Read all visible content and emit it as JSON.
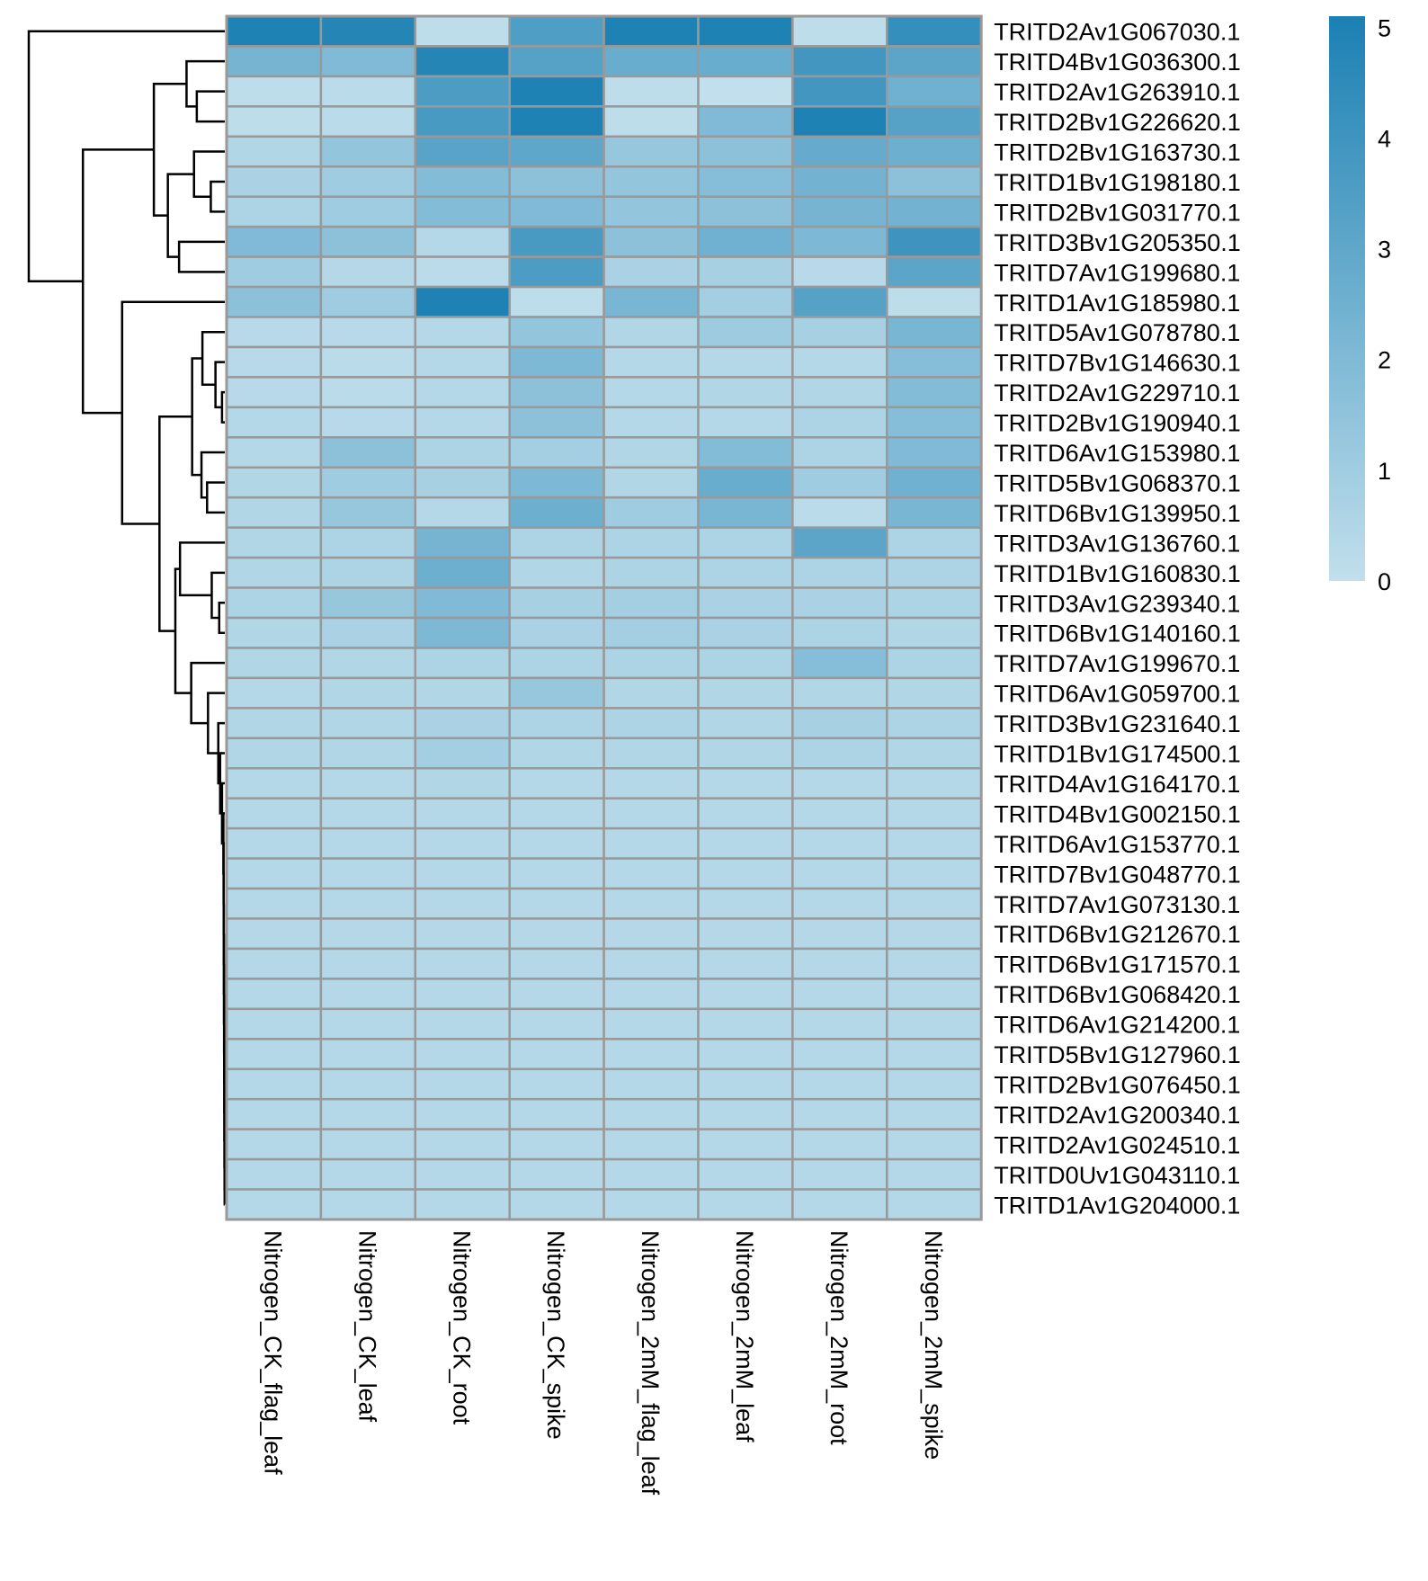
{
  "chart_data": {
    "type": "heatmap",
    "columns": [
      "Nitrogen_CK_flag_leaf",
      "Nitrogen_CK_leaf",
      "Nitrogen_CK_root",
      "Nitrogen_CK_spike",
      "Nitrogen_2mM_flag_leaf",
      "Nitrogen_2mM_leaf",
      "Nitrogen_2mM_root",
      "Nitrogen_2mM_spike"
    ],
    "rows": [
      "TRITD2Av1G067030.1",
      "TRITD4Bv1G036300.1",
      "TRITD2Av1G263910.1",
      "TRITD2Bv1G226620.1",
      "TRITD2Bv1G163730.1",
      "TRITD1Bv1G198180.1",
      "TRITD2Bv1G031770.1",
      "TRITD3Bv1G205350.1",
      "TRITD7Av1G199680.1",
      "TRITD1Av1G185980.1",
      "TRITD5Av1G078780.1",
      "TRITD7Bv1G146630.1",
      "TRITD2Av1G229710.1",
      "TRITD2Bv1G190940.1",
      "TRITD6Av1G153980.1",
      "TRITD5Bv1G068370.1",
      "TRITD6Bv1G139950.1",
      "TRITD3Av1G136760.1",
      "TRITD1Bv1G160830.1",
      "TRITD3Av1G239340.1",
      "TRITD6Bv1G140160.1",
      "TRITD7Av1G199670.1",
      "TRITD6Av1G059700.1",
      "TRITD3Bv1G231640.1",
      "TRITD1Bv1G174500.1",
      "TRITD4Av1G164170.1",
      "TRITD4Bv1G002150.1",
      "TRITD6Av1G153770.1",
      "TRITD7Bv1G048770.1",
      "TRITD7Av1G073130.1",
      "TRITD6Bv1G212670.1",
      "TRITD6Bv1G171570.1",
      "TRITD6Bv1G068420.1",
      "TRITD6Av1G214200.1",
      "TRITD5Bv1G127960.1",
      "TRITD2Bv1G076450.1",
      "TRITD2Av1G200340.1",
      "TRITD2Av1G024510.1",
      "TRITD0Uv1G043110.1",
      "TRITD1Av1G204000.1"
    ],
    "values": [
      [
        5.0,
        4.8,
        0.1,
        3.5,
        5.0,
        5.0,
        0.1,
        4.3
      ],
      [
        2.3,
        2.0,
        4.8,
        3.3,
        2.7,
        2.7,
        3.9,
        3.1
      ],
      [
        0.1,
        0.2,
        3.6,
        5.0,
        0.1,
        0.0,
        3.9,
        2.5
      ],
      [
        0.1,
        0.2,
        3.7,
        5.0,
        0.1,
        2.0,
        5.0,
        3.3
      ],
      [
        0.5,
        1.4,
        3.2,
        3.0,
        1.3,
        1.6,
        2.8,
        2.6
      ],
      [
        0.7,
        1.0,
        1.9,
        1.6,
        1.4,
        1.8,
        2.4,
        1.6
      ],
      [
        0.6,
        1.0,
        1.9,
        2.0,
        1.4,
        1.6,
        2.3,
        2.4
      ],
      [
        2.0,
        1.6,
        0.4,
        3.7,
        1.6,
        2.5,
        2.1,
        4.0
      ],
      [
        1.0,
        0.4,
        0.2,
        3.6,
        0.7,
        0.8,
        0.3,
        3.1
      ],
      [
        1.6,
        1.0,
        5.0,
        0.1,
        2.2,
        0.9,
        3.3,
        0.1
      ],
      [
        0.3,
        0.3,
        0.4,
        1.4,
        0.5,
        1.1,
        0.8,
        2.2
      ],
      [
        0.3,
        0.2,
        0.4,
        2.1,
        0.4,
        0.4,
        0.4,
        1.8
      ],
      [
        0.3,
        0.2,
        0.4,
        1.6,
        0.4,
        0.5,
        0.5,
        1.9
      ],
      [
        0.4,
        0.3,
        0.4,
        1.6,
        0.4,
        0.4,
        0.6,
        1.8
      ],
      [
        0.4,
        1.6,
        0.6,
        0.9,
        0.5,
        1.9,
        0.6,
        2.0
      ],
      [
        0.5,
        1.0,
        0.8,
        2.1,
        0.5,
        2.7,
        1.0,
        2.5
      ],
      [
        0.5,
        1.3,
        0.4,
        2.6,
        1.0,
        2.2,
        0.2,
        2.2
      ],
      [
        0.5,
        0.6,
        2.3,
        0.6,
        0.6,
        0.6,
        3.1,
        0.6
      ],
      [
        0.5,
        0.6,
        2.6,
        0.5,
        0.6,
        0.6,
        0.6,
        0.6
      ],
      [
        0.6,
        1.3,
        2.0,
        0.8,
        0.9,
        0.7,
        0.7,
        0.6
      ],
      [
        0.5,
        0.7,
        2.1,
        0.7,
        0.9,
        0.7,
        0.6,
        0.5
      ],
      [
        0.5,
        0.5,
        0.6,
        0.6,
        0.6,
        0.6,
        1.8,
        0.6
      ],
      [
        0.4,
        0.5,
        0.5,
        1.3,
        0.5,
        0.5,
        0.5,
        0.5
      ],
      [
        0.5,
        0.5,
        0.7,
        0.6,
        0.6,
        0.5,
        0.8,
        0.6
      ],
      [
        0.5,
        0.5,
        0.9,
        0.5,
        0.5,
        0.5,
        0.6,
        0.5
      ],
      [
        0.4,
        0.4,
        0.5,
        0.4,
        0.4,
        0.4,
        0.4,
        0.4
      ],
      [
        0.4,
        0.4,
        0.4,
        0.4,
        0.4,
        0.4,
        0.4,
        0.4
      ],
      [
        0.4,
        0.4,
        0.4,
        0.4,
        0.4,
        0.4,
        0.4,
        0.4
      ],
      [
        0.4,
        0.4,
        0.4,
        0.4,
        0.4,
        0.4,
        0.4,
        0.4
      ],
      [
        0.4,
        0.4,
        0.4,
        0.4,
        0.4,
        0.4,
        0.4,
        0.4
      ],
      [
        0.4,
        0.4,
        0.4,
        0.4,
        0.4,
        0.4,
        0.4,
        0.4
      ],
      [
        0.4,
        0.4,
        0.4,
        0.4,
        0.4,
        0.4,
        0.4,
        0.4
      ],
      [
        0.4,
        0.4,
        0.4,
        0.4,
        0.4,
        0.4,
        0.4,
        0.4
      ],
      [
        0.4,
        0.4,
        0.4,
        0.4,
        0.4,
        0.4,
        0.4,
        0.4
      ],
      [
        0.4,
        0.4,
        0.4,
        0.4,
        0.4,
        0.4,
        0.4,
        0.4
      ],
      [
        0.4,
        0.4,
        0.4,
        0.4,
        0.4,
        0.4,
        0.4,
        0.4
      ],
      [
        0.4,
        0.4,
        0.4,
        0.4,
        0.4,
        0.4,
        0.4,
        0.4
      ],
      [
        0.4,
        0.4,
        0.4,
        0.4,
        0.4,
        0.4,
        0.4,
        0.4
      ],
      [
        0.4,
        0.4,
        0.4,
        0.4,
        0.4,
        0.4,
        0.4,
        0.4
      ],
      [
        0.4,
        0.4,
        0.4,
        0.4,
        0.4,
        0.4,
        0.4,
        0.4
      ]
    ],
    "value_range": [
      0,
      5.1
    ],
    "color_low": "#C1DFEC",
    "color_high": "#1B80B3",
    "cell_border_color": "#999999",
    "legend": {
      "placement": "right",
      "ticks": [
        0,
        1,
        2,
        3,
        4,
        5
      ]
    },
    "row_dendrogram": {
      "placement": "left",
      "order": [
        0,
        1,
        2,
        3,
        4,
        5,
        6,
        7,
        8,
        9,
        10,
        11,
        12,
        13,
        14,
        15,
        16,
        17,
        18,
        19,
        20,
        21,
        22,
        23,
        24,
        25,
        26,
        27,
        28,
        29,
        30,
        31,
        32,
        33,
        34,
        35,
        36,
        37,
        38,
        39
      ],
      "merges": [
        [
          2,
          3,
          3.0
        ],
        [
          5,
          6,
          1.5
        ],
        [
          4,
          "m1",
          3.3
        ],
        [
          7,
          8,
          4.9
        ],
        [
          "m2",
          "m3",
          6.1
        ],
        [
          1,
          "m0",
          4.1
        ],
        [
          "m5",
          "m4",
          7.6
        ],
        [
          12,
          13,
          0.3
        ],
        [
          11,
          "m7",
          1.0
        ],
        [
          10,
          "m8",
          2.4
        ],
        [
          15,
          16,
          1.9
        ],
        [
          14,
          "m10",
          2.5
        ],
        [
          "m9",
          "m11",
          3.5
        ],
        [
          19,
          20,
          0.6
        ],
        [
          18,
          "m13",
          1.4
        ],
        [
          17,
          "m14",
          4.8
        ],
        [
          38,
          39,
          0.02
        ],
        [
          37,
          "m16",
          0.03
        ],
        [
          36,
          "m17",
          0.04
        ],
        [
          35,
          "m18",
          0.05
        ],
        [
          34,
          "m19",
          0.06
        ],
        [
          33,
          "m20",
          0.07
        ],
        [
          32,
          "m21",
          0.08
        ],
        [
          31,
          "m22",
          0.09
        ],
        [
          30,
          "m23",
          0.1
        ],
        [
          29,
          "m24",
          0.11
        ],
        [
          28,
          "m25",
          0.12
        ],
        [
          27,
          "m26",
          0.13
        ],
        [
          26,
          "m27",
          0.15
        ],
        [
          25,
          "m28",
          0.3
        ],
        [
          24,
          "m29",
          0.5
        ],
        [
          23,
          "m30",
          0.7
        ],
        [
          22,
          "m31",
          1.8
        ],
        [
          21,
          "m32",
          3.6
        ],
        [
          "m15",
          "m33",
          5.3
        ],
        [
          "m12",
          "m34",
          7.0
        ],
        [
          9,
          "m35",
          11.0
        ],
        [
          "m6",
          "m36",
          15.2
        ],
        [
          0,
          "m37",
          21.0
        ]
      ]
    }
  }
}
